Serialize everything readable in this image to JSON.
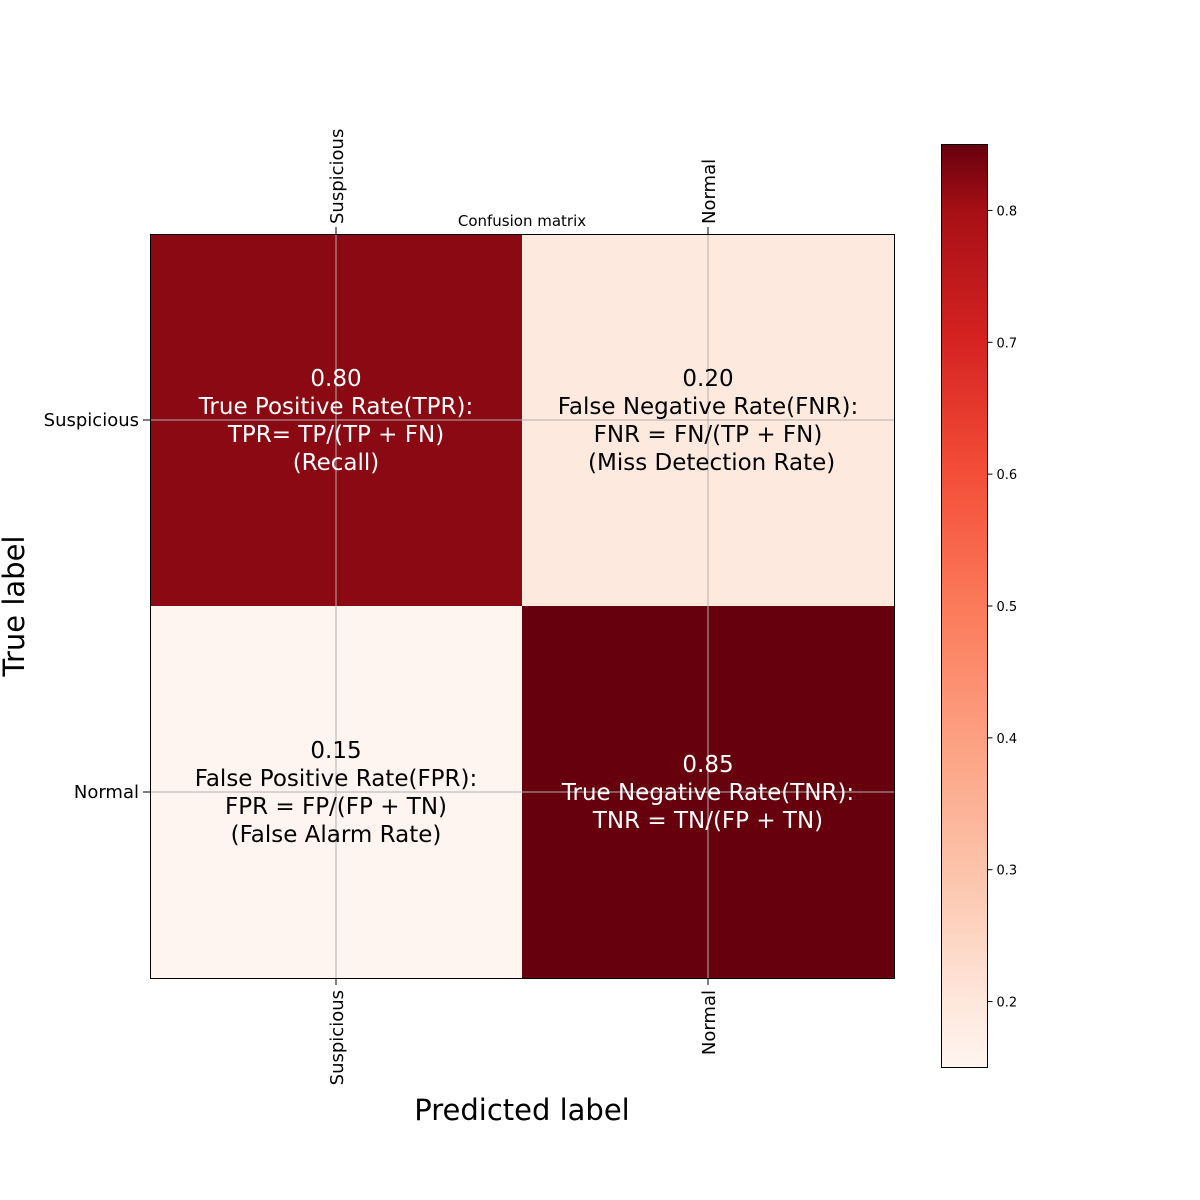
{
  "chart_data": {
    "type": "heatmap",
    "title": "Confusion matrix",
    "xlabel": "Predicted label",
    "ylabel": "True label",
    "x_categories": [
      "Suspicious",
      "Normal"
    ],
    "y_categories": [
      "Suspicious",
      "Normal"
    ],
    "values": [
      [
        0.8,
        0.2
      ],
      [
        0.15,
        0.85
      ]
    ],
    "cell_labels": [
      [
        [
          "0.80",
          "True Positive Rate(TPR):",
          "TPR= TP/(TP + FN)",
          "(Recall)"
        ],
        [
          "0.20",
          "False Negative Rate(FNR):",
          "FNR = FN/(TP + FN)",
          " (Miss Detection Rate)"
        ]
      ],
      [
        [
          "0.15",
          "False Positive Rate(FPR):",
          "FPR = FP/(FP + TN)",
          "(False Alarm Rate)"
        ],
        [
          "0.85",
          "True Negative Rate(TNR):",
          "TNR = TN/(FP + TN)"
        ]
      ]
    ],
    "colormap": "Reds",
    "colorbar": {
      "range": [
        0.15,
        0.85
      ],
      "ticks": [
        0.2,
        0.3,
        0.4,
        0.5,
        0.6,
        0.7,
        0.8
      ],
      "tick_labels": [
        "0.2",
        "0.3",
        "0.4",
        "0.5",
        "0.6",
        "0.7",
        "0.8"
      ]
    },
    "grid": true,
    "x_ticks_position": "top and bottom, rotated 90"
  }
}
